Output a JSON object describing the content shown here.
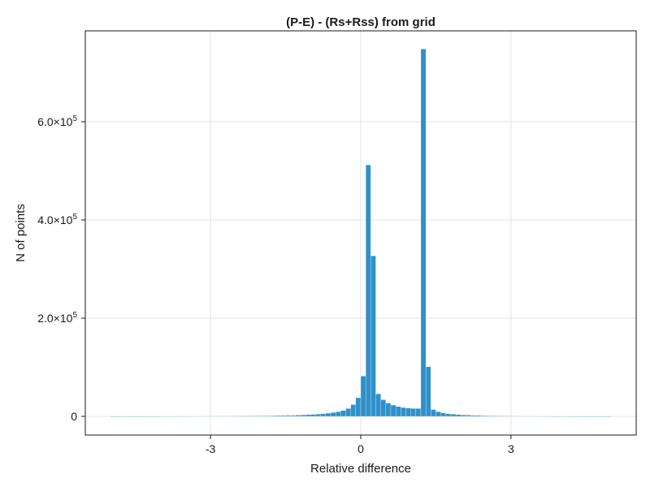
{
  "chart_data": {
    "type": "bar",
    "title": "(P-E) - (Rs+Rss) from grid",
    "xlabel": "Relative difference",
    "ylabel": "N of points",
    "xlim": [
      -5.5,
      5.5
    ],
    "ylim": [
      -38000,
      785000
    ],
    "bin_width": 0.1,
    "bin_start": -5.0,
    "bar_color": "#2e91c9",
    "grid": true,
    "x_ticks": [
      {
        "value": -3,
        "label": "-3"
      },
      {
        "value": 0,
        "label": "0"
      },
      {
        "value": 3,
        "label": "3"
      }
    ],
    "y_ticks": [
      {
        "value": 0,
        "label": "0",
        "base": "",
        "exp": ""
      },
      {
        "value": 200000,
        "label": "",
        "base": "2.0×10",
        "exp": "5"
      },
      {
        "value": 400000,
        "label": "",
        "base": "4.0×10",
        "exp": "5"
      },
      {
        "value": 600000,
        "label": "",
        "base": "6.0×10",
        "exp": "5"
      }
    ],
    "values": [
      100,
      100,
      120,
      130,
      140,
      150,
      160,
      180,
      200,
      220,
      240,
      260,
      280,
      300,
      330,
      360,
      390,
      420,
      460,
      500,
      540,
      590,
      640,
      700,
      760,
      830,
      900,
      980,
      1070,
      1170,
      1280,
      1400,
      1530,
      1680,
      1850,
      2050,
      2300,
      2600,
      3000,
      3500,
      4000,
      4700,
      5500,
      6500,
      7800,
      9500,
      12000,
      16000,
      24000,
      38000,
      82000,
      512000,
      327000,
      46000,
      34000,
      27000,
      23000,
      20000,
      18000,
      17000,
      16000,
      16000,
      748000,
      101000,
      14000,
      9500,
      7000,
      5500,
      4500,
      3700,
      3100,
      2600,
      2200,
      1900,
      1600,
      1400,
      1200,
      1050,
      920,
      800,
      700,
      620,
      550,
      490,
      440,
      400,
      360,
      330,
      300,
      270,
      250,
      230,
      210,
      190,
      170,
      150,
      130,
      120,
      110,
      100
    ]
  }
}
